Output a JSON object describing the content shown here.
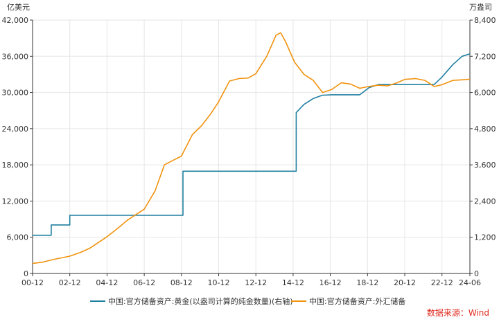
{
  "chart_data": {
    "type": "line",
    "left_unit": "亿美元",
    "right_unit": "万盎司",
    "source": "数据来源：Wind",
    "x_ticks": [
      "00-12",
      "02-12",
      "04-12",
      "06-12",
      "08-12",
      "10-12",
      "12-12",
      "14-12",
      "16-12",
      "18-12",
      "20-12",
      "22-12",
      "24-06"
    ],
    "x_tick_positions": [
      2000.917,
      2002.917,
      2004.917,
      2006.917,
      2008.917,
      2010.917,
      2012.917,
      2014.917,
      2016.917,
      2018.917,
      2020.917,
      2022.917,
      2024.417
    ],
    "xlim": [
      2000.917,
      2024.417
    ],
    "y_left_ticks": [
      "0",
      "6,000",
      "12,000",
      "18,000",
      "24,000",
      "30,000",
      "36,000",
      "42,000"
    ],
    "y_left_lim": [
      0,
      42000
    ],
    "y_right_ticks": [
      "0",
      "1,200",
      "2,400",
      "3,600",
      "4,800",
      "6,000",
      "7,200",
      "8,400"
    ],
    "y_right_lim": [
      0,
      8400
    ],
    "series": [
      {
        "name": "中国:官方储备资产:黄金(以盎司计算的纯金数量)(右轴)",
        "axis": "right",
        "color": "#1f7fa0",
        "x": [
          2000.917,
          2001.917,
          2001.917,
          2002.917,
          2002.917,
          2009.0,
          2009.0,
          2015.083,
          2015.083,
          2015.5,
          2016.0,
          2016.5,
          2017.0,
          2018.5,
          2019.0,
          2019.5,
          2022.5,
          2022.917,
          2023.5,
          2024.0,
          2024.417
        ],
        "y": [
          1267,
          1267,
          1608,
          1608,
          1929,
          1929,
          3389,
          3389,
          5332,
          5605,
          5800,
          5910,
          5924,
          5924,
          6160,
          6264,
          6264,
          6512,
          6925,
          7200,
          7280
        ]
      },
      {
        "name": "中国:官方储备资产:外汇储备",
        "axis": "left",
        "color": "#f0920e",
        "x": [
          2000.917,
          2001.5,
          2002.0,
          2002.917,
          2003.5,
          2004.0,
          2004.917,
          2005.5,
          2006.0,
          2006.917,
          2007.5,
          2008.0,
          2008.917,
          2009.5,
          2010.0,
          2010.5,
          2010.917,
          2011.5,
          2012.0,
          2012.5,
          2012.917,
          2013.5,
          2014.0,
          2014.25,
          2014.5,
          2015.0,
          2015.5,
          2016.0,
          2016.5,
          2017.0,
          2017.5,
          2018.0,
          2018.5,
          2019.0,
          2019.5,
          2020.0,
          2020.5,
          2020.917,
          2021.5,
          2022.0,
          2022.5,
          2022.917,
          2023.5,
          2024.0,
          2024.417
        ],
        "y": [
          1656,
          1900,
          2300,
          2864,
          3500,
          4200,
          6099,
          7500,
          8800,
          10663,
          13700,
          18000,
          19460,
          23000,
          24500,
          26500,
          28473,
          31900,
          32300,
          32400,
          33116,
          36000,
          39500,
          39900,
          38500,
          35000,
          33000,
          32000,
          30000,
          30500,
          31600,
          31400,
          30700,
          31000,
          31200,
          31100,
          31600,
          32165,
          32300,
          32000,
          31000,
          31277,
          32000,
          32100,
          32200
        ]
      }
    ]
  }
}
